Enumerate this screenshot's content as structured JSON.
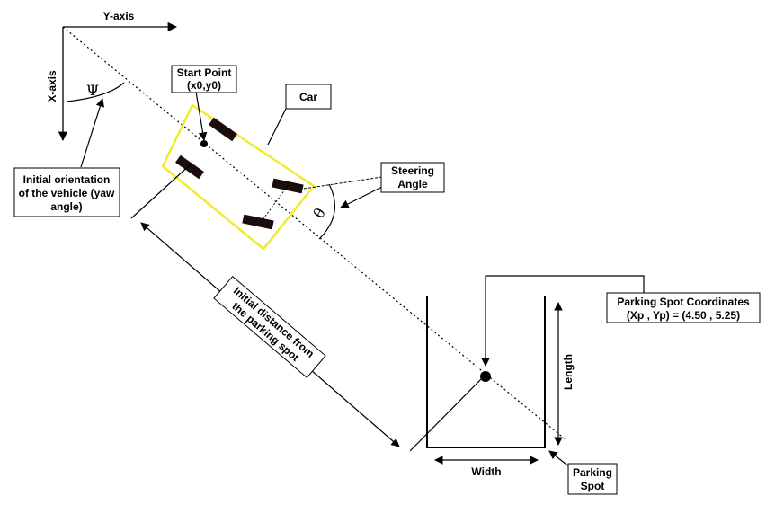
{
  "axes": {
    "y_label": "Y-axis",
    "x_label": "X-axis"
  },
  "symbols": {
    "yaw": "Ψ",
    "steer": "θ"
  },
  "labels": {
    "start_point": [
      "Start Point",
      "(x0,y0)"
    ],
    "car": [
      "Car"
    ],
    "steering_angle": [
      "Steering",
      "Angle"
    ],
    "initial_orientation": [
      "Initial orientation",
      "of the vehicle (yaw",
      "angle)"
    ],
    "initial_distance": [
      "Initial distance from",
      "the parking spot"
    ],
    "parking_coords": [
      "Parking Spot Coordinates",
      "(Xp , Yp) = (4.50 , 5.25)"
    ],
    "length": [
      "Length"
    ],
    "width": [
      "Width"
    ],
    "parking_spot": [
      "Parking",
      "Spot"
    ]
  },
  "colors": {
    "car_outline": "#f2ea2f",
    "wheel": "#1c0d0d",
    "line": "#000000"
  }
}
